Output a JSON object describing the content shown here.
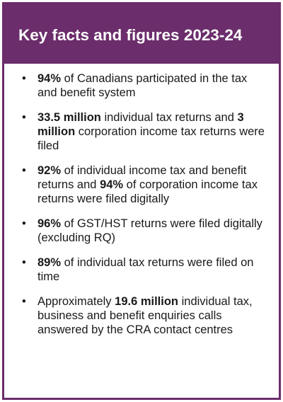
{
  "title": "Key facts and figures 2023-24",
  "colors": {
    "accent": "#6b2d6b",
    "title_text": "#ffffff",
    "body_text": "#1a1a1a"
  },
  "facts": [
    {
      "parts": [
        {
          "text": "94%",
          "bold": true
        },
        {
          "text": " of Canadians participated in the tax and benefit system",
          "bold": false
        }
      ]
    },
    {
      "parts": [
        {
          "text": "33.5 million",
          "bold": true
        },
        {
          "text": " individual tax returns and ",
          "bold": false
        },
        {
          "text": "3 million",
          "bold": true
        },
        {
          "text": " corporation income tax returns were filed",
          "bold": false
        }
      ]
    },
    {
      "parts": [
        {
          "text": "92%",
          "bold": true
        },
        {
          "text": " of individual income tax and benefit returns and ",
          "bold": false
        },
        {
          "text": "94%",
          "bold": true
        },
        {
          "text": " of corporation income tax returns were filed digitally",
          "bold": false
        }
      ]
    },
    {
      "parts": [
        {
          "text": "96%",
          "bold": true
        },
        {
          "text": " of GST/HST returns were filed digitally (excluding RQ)",
          "bold": false
        }
      ]
    },
    {
      "parts": [
        {
          "text": "89%",
          "bold": true
        },
        {
          "text": " of individual tax returns were filed on time",
          "bold": false
        }
      ]
    },
    {
      "parts": [
        {
          "text": "Approximately ",
          "bold": false
        },
        {
          "text": "19.6 million",
          "bold": true
        },
        {
          "text": " individual tax, business and benefit enquiries calls answered by the CRA contact centres",
          "bold": false
        }
      ]
    }
  ]
}
